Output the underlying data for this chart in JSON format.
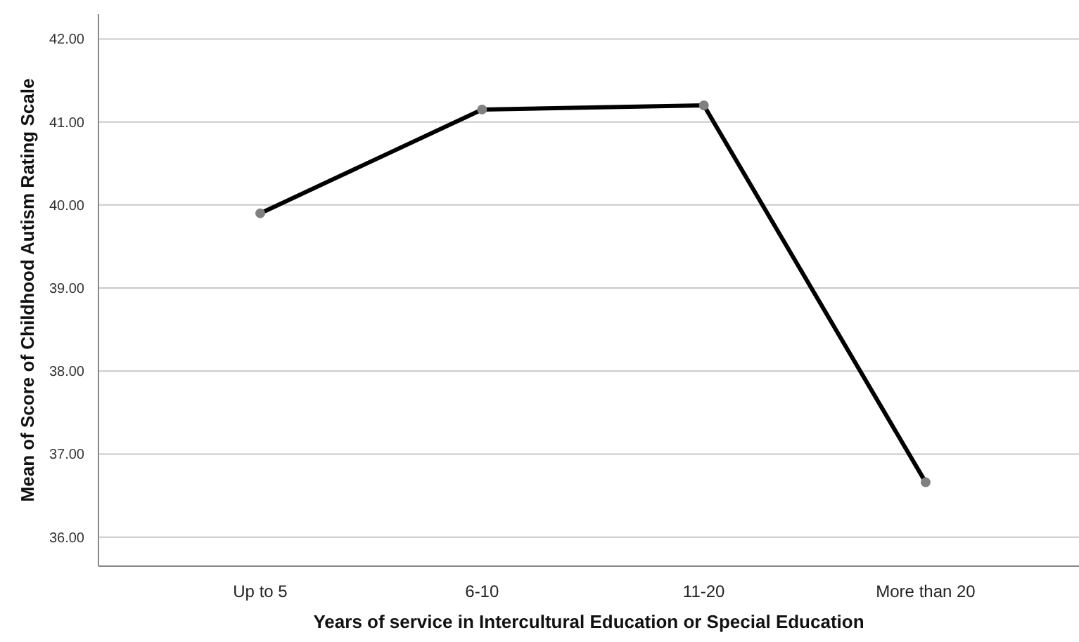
{
  "chart_data": {
    "type": "line",
    "xlabel": "Years of service in Intercultural Education or Special Education",
    "ylabel": "Mean of Score of Childhood Autism Rating Scale",
    "categories": [
      "Up to 5",
      "6-10",
      "11-20",
      "More than 20"
    ],
    "series": [
      {
        "color": "#000000",
        "values": [
          39.9,
          41.15,
          41.2,
          36.66
        ]
      }
    ],
    "ylim": [
      35.65,
      42.3
    ],
    "yticks": [
      {
        "value": 36,
        "label": "36.00"
      },
      {
        "value": 37,
        "label": "37.00"
      },
      {
        "value": 38,
        "label": "38.00"
      },
      {
        "value": 39,
        "label": "39.00"
      },
      {
        "value": 40,
        "label": "40.00"
      },
      {
        "value": 41,
        "label": "41.00"
      },
      {
        "value": 42,
        "label": "42.00"
      }
    ],
    "grid": "y",
    "marker": "circle",
    "line_style": "solid"
  }
}
